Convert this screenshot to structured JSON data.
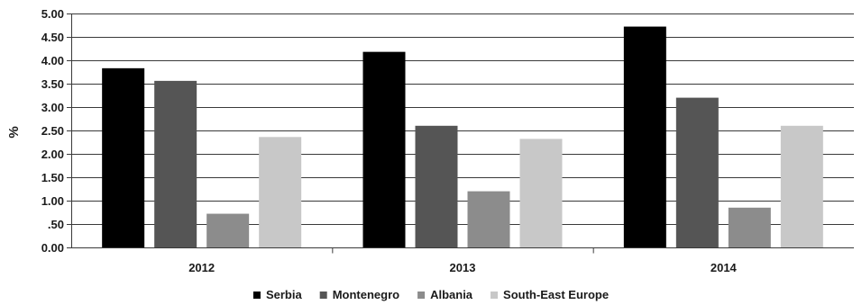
{
  "chart_data": {
    "type": "bar",
    "categories": [
      "2012",
      "2013",
      "2014"
    ],
    "series": [
      {
        "name": "Serbia",
        "values": [
          3.83,
          4.18,
          4.72
        ],
        "color": "#000000"
      },
      {
        "name": "Montenegro",
        "values": [
          3.56,
          2.6,
          3.2
        ],
        "color": "#555555"
      },
      {
        "name": "Albania",
        "values": [
          0.72,
          1.2,
          0.85
        ],
        "color": "#8c8c8c"
      },
      {
        "name": "South-East Europe",
        "values": [
          2.36,
          2.32,
          2.6
        ],
        "color": "#c8c8c8"
      }
    ],
    "ylabel": "%",
    "ylim": [
      0,
      5
    ],
    "yticks": [
      0,
      0.5,
      1,
      1.5,
      2,
      2.5,
      3,
      3.5,
      4,
      4.5,
      5
    ],
    "ytick_labels": [
      "0.00",
      ".50",
      "1.00",
      "1.50",
      "2.00",
      "2.50",
      "3.00",
      "3.50",
      "4.00",
      "4.50",
      "5.00"
    ],
    "grid": true,
    "legend": "bottom"
  }
}
